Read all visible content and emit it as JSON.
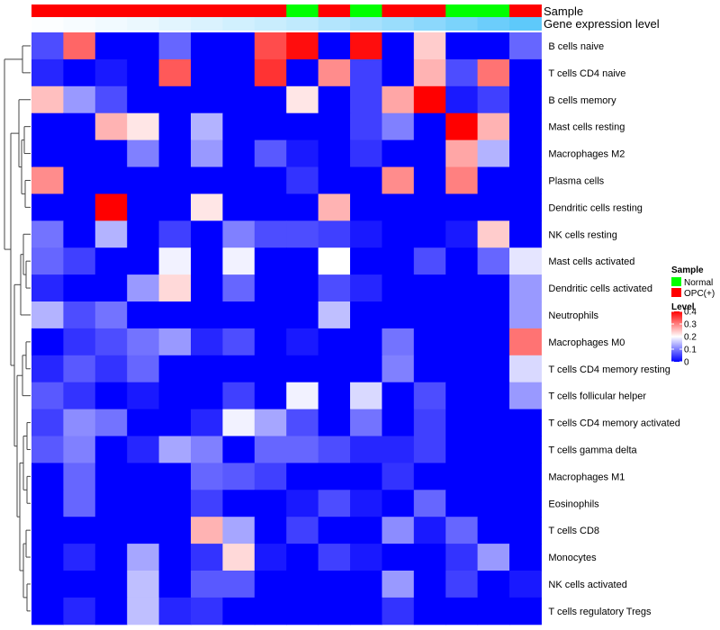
{
  "chart_data": {
    "type": "heatmap",
    "title": "",
    "annotation_labels": {
      "sample": "Sample",
      "gene_expression": "Gene expression level"
    },
    "columns": 16,
    "sample_groups": [
      "OPC(+)",
      "OPC(+)",
      "OPC(+)",
      "OPC(+)",
      "OPC(+)",
      "OPC(+)",
      "OPC(+)",
      "OPC(+)",
      "Normal",
      "OPC(+)",
      "Normal",
      "OPC(+)",
      "OPC(+)",
      "Normal",
      "Normal",
      "OPC(+)"
    ],
    "gene_expression_levels": [
      0.02,
      0.05,
      0.08,
      0.12,
      0.17,
      0.22,
      0.27,
      0.32,
      0.37,
      0.45,
      0.52,
      0.6,
      0.68,
      0.78,
      0.87,
      0.95
    ],
    "rows": [
      "B cells naive",
      "T cells CD4 naive",
      "B cells memory",
      "Mast cells resting",
      "Macrophages M2",
      "Plasma cells",
      "Dendritic cells resting",
      "NK cells resting",
      "Mast cells activated",
      "Dendritic cells activated",
      "Neutrophils",
      "Macrophages M0",
      "T cells CD4 memory resting",
      "T cells follicular helper",
      "T cells CD4 memory activated",
      "T cells gamma delta",
      "Macrophages M1",
      "Eosinophils",
      "T cells CD8",
      "Monocytes",
      "NK cells activated",
      "T cells regulatory  Tregs"
    ],
    "values": [
      [
        0.06,
        0.32,
        0.0,
        0.0,
        0.08,
        0.0,
        0.0,
        0.34,
        0.39,
        0.0,
        0.39,
        0.0,
        0.24,
        0.0,
        0.0,
        0.08
      ],
      [
        0.03,
        0.0,
        0.02,
        0.0,
        0.33,
        0.0,
        0.0,
        0.36,
        0.0,
        0.29,
        0.05,
        0.0,
        0.26,
        0.06,
        0.31,
        0.0
      ],
      [
        0.25,
        0.12,
        0.06,
        0.0,
        0.0,
        0.0,
        0.0,
        0.0,
        0.22,
        0.0,
        0.05,
        0.27,
        0.4,
        0.02,
        0.05,
        0.0
      ],
      [
        0.0,
        0.0,
        0.26,
        0.22,
        0.0,
        0.14,
        0.0,
        0.0,
        0.0,
        0.0,
        0.05,
        0.1,
        0.0,
        0.41,
        0.26,
        0.0
      ],
      [
        0.0,
        0.0,
        0.0,
        0.1,
        0.0,
        0.12,
        0.0,
        0.07,
        0.02,
        0.0,
        0.04,
        0.0,
        0.0,
        0.27,
        0.14,
        0.0
      ],
      [
        0.29,
        0.0,
        0.0,
        0.0,
        0.0,
        0.0,
        0.0,
        0.0,
        0.04,
        0.0,
        0.0,
        0.29,
        0.0,
        0.3,
        0.0,
        0.0
      ],
      [
        0.0,
        0.0,
        0.4,
        0.0,
        0.0,
        0.22,
        0.0,
        0.0,
        0.0,
        0.26,
        0.0,
        0.0,
        0.0,
        0.0,
        0.0,
        0.0
      ],
      [
        0.09,
        0.0,
        0.14,
        0.0,
        0.05,
        0.0,
        0.1,
        0.06,
        0.06,
        0.05,
        0.02,
        0.0,
        0.0,
        0.02,
        0.24,
        0.0
      ],
      [
        0.08,
        0.05,
        0.0,
        0.0,
        0.19,
        0.0,
        0.19,
        0.0,
        0.0,
        0.2,
        0.0,
        0.0,
        0.06,
        0.0,
        0.08,
        0.18
      ],
      [
        0.03,
        0.0,
        0.0,
        0.12,
        0.23,
        0.0,
        0.08,
        0.0,
        0.0,
        0.06,
        0.03,
        0.0,
        0.0,
        0.0,
        0.0,
        0.12
      ],
      [
        0.14,
        0.06,
        0.09,
        0.0,
        0.0,
        0.0,
        0.0,
        0.0,
        0.0,
        0.15,
        0.0,
        0.0,
        0.0,
        0.0,
        0.0,
        0.12
      ],
      [
        0.0,
        0.04,
        0.06,
        0.09,
        0.12,
        0.03,
        0.06,
        0.0,
        0.02,
        0.0,
        0.0,
        0.09,
        0.0,
        0.0,
        0.0,
        0.31
      ],
      [
        0.03,
        0.07,
        0.04,
        0.08,
        0.0,
        0.0,
        0.0,
        0.0,
        0.0,
        0.0,
        0.0,
        0.1,
        0.0,
        0.0,
        0.0,
        0.17
      ],
      [
        0.07,
        0.04,
        0.0,
        0.02,
        0.0,
        0.0,
        0.05,
        0.0,
        0.19,
        0.0,
        0.17,
        0.0,
        0.06,
        0.0,
        0.0,
        0.12
      ],
      [
        0.05,
        0.11,
        0.09,
        0.0,
        0.0,
        0.03,
        0.19,
        0.13,
        0.06,
        0.0,
        0.09,
        0.0,
        0.05,
        0.0,
        0.0,
        0.0
      ],
      [
        0.07,
        0.1,
        0.0,
        0.03,
        0.13,
        0.1,
        0.0,
        0.08,
        0.08,
        0.06,
        0.03,
        0.03,
        0.05,
        0.0,
        0.0,
        0.0
      ],
      [
        0.0,
        0.08,
        0.0,
        0.0,
        0.0,
        0.08,
        0.07,
        0.05,
        0.0,
        0.0,
        0.0,
        0.04,
        0.0,
        0.0,
        0.0,
        0.0
      ],
      [
        0.0,
        0.08,
        0.0,
        0.0,
        0.0,
        0.05,
        0.0,
        0.0,
        0.02,
        0.06,
        0.02,
        0.0,
        0.08,
        0.0,
        0.0,
        0.0
      ],
      [
        0.0,
        0.0,
        0.0,
        0.0,
        0.0,
        0.26,
        0.13,
        0.0,
        0.05,
        0.0,
        0.0,
        0.11,
        0.02,
        0.08,
        0.0,
        0.0
      ],
      [
        0.0,
        0.03,
        0.0,
        0.13,
        0.0,
        0.04,
        0.23,
        0.02,
        0.0,
        0.05,
        0.02,
        0.0,
        0.0,
        0.04,
        0.12,
        0.0
      ],
      [
        0.0,
        0.0,
        0.0,
        0.15,
        0.0,
        0.07,
        0.07,
        0.0,
        0.0,
        0.0,
        0.0,
        0.12,
        0.0,
        0.05,
        0.0,
        0.02
      ],
      [
        0.0,
        0.03,
        0.0,
        0.15,
        0.03,
        0.04,
        0.0,
        0.0,
        0.0,
        0.0,
        0.0,
        0.04,
        0.0,
        0.0,
        0.0,
        0.0
      ]
    ],
    "color_scale": {
      "min": 0,
      "max": 0.4,
      "low": "#0000ff",
      "mid": "#ffffff",
      "high": "#ff0000",
      "mid_value": 0.2
    },
    "legend": {
      "sample_title": "Sample",
      "sample_entries": [
        {
          "label": "Normal",
          "color": "#00ff00"
        },
        {
          "label": "OPC(+)",
          "color": "#ff0000"
        }
      ],
      "level_title": "Level",
      "level_ticks": [
        {
          "value": 0.4,
          "label": "0.4"
        },
        {
          "value": 0.3,
          "label": "0.3"
        },
        {
          "value": 0.2,
          "label": "0.2"
        },
        {
          "value": 0.1,
          "label": "0.1"
        },
        {
          "value": 0.0,
          "label": "0"
        }
      ],
      "placement": "right"
    },
    "dendrogram": "rows"
  }
}
